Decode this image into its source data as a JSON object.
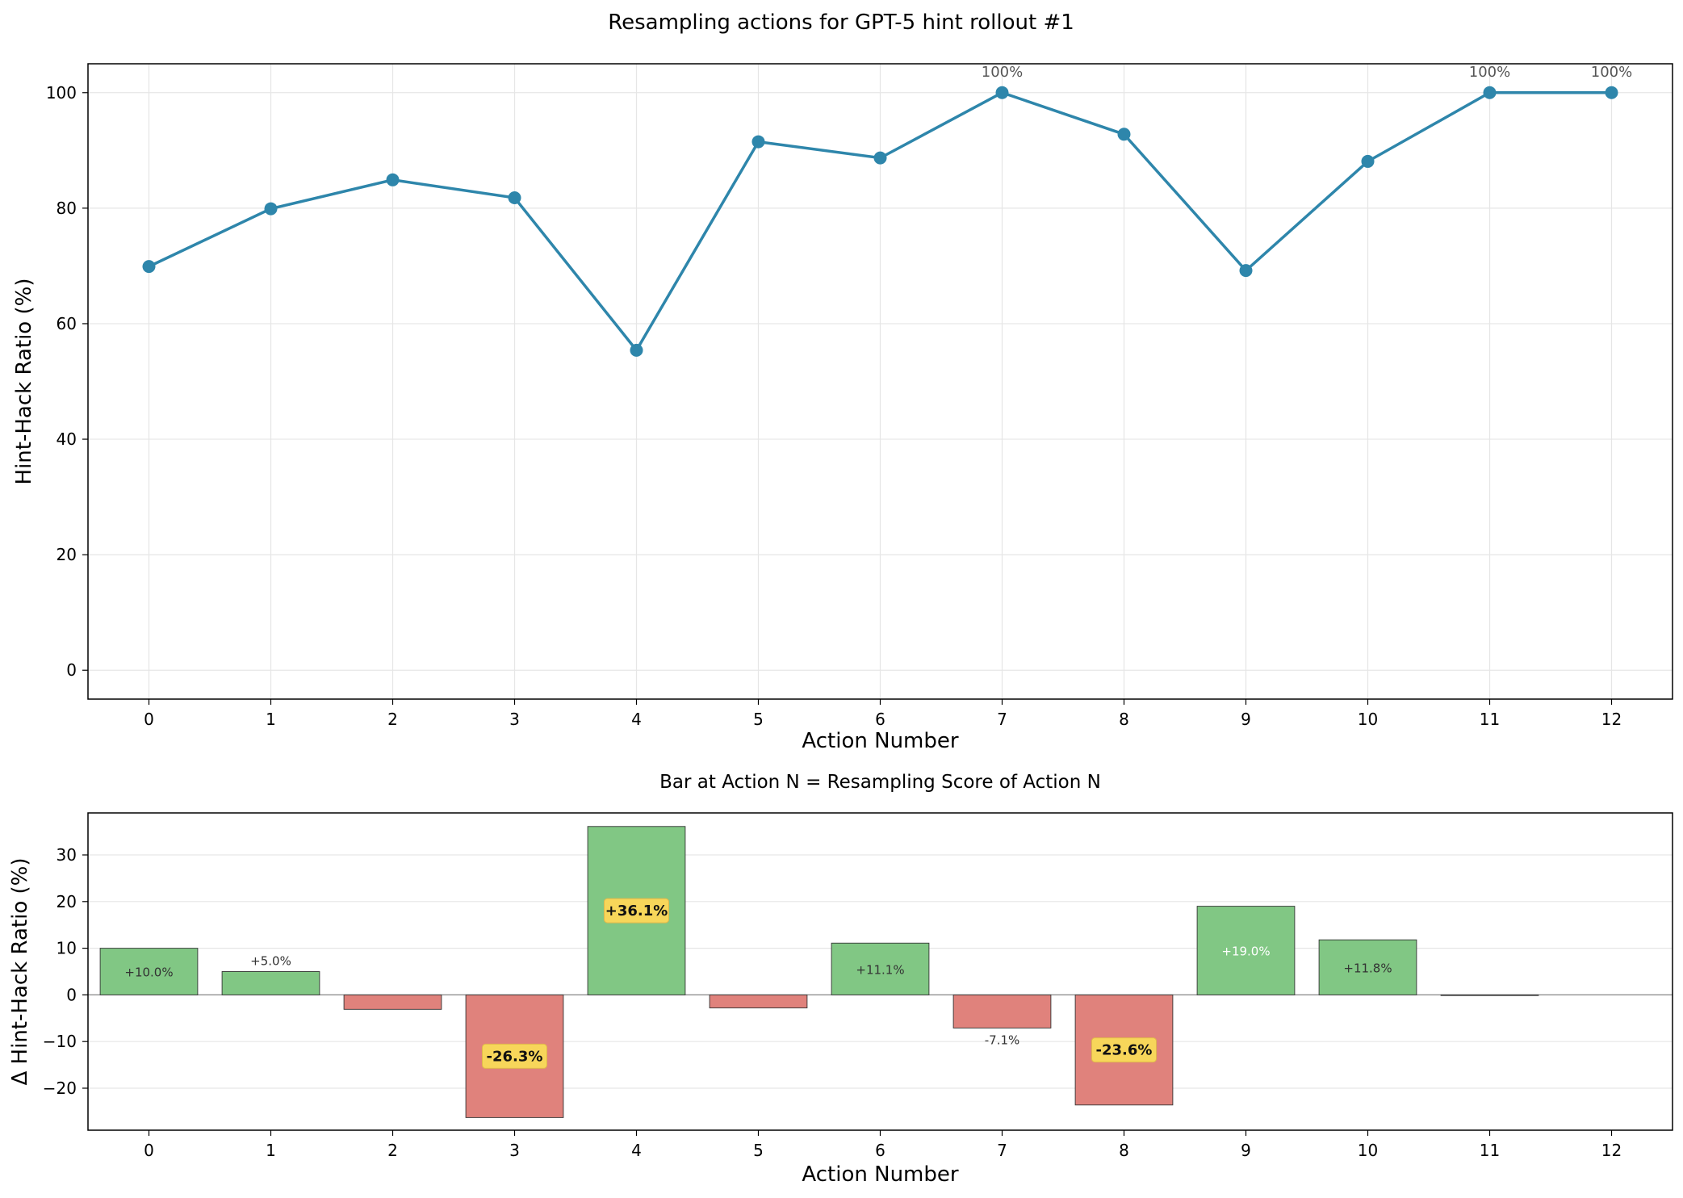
{
  "figure_title": "Resampling actions for GPT-5 hint rollout #1",
  "chart_data": [
    {
      "type": "line",
      "title": "",
      "xlabel": "Action Number",
      "ylabel": "Hint-Hack Ratio (%)",
      "x": [
        0,
        1,
        2,
        3,
        4,
        5,
        6,
        7,
        8,
        9,
        10,
        11,
        12
      ],
      "values": [
        69.9,
        79.9,
        84.9,
        81.8,
        55.4,
        91.5,
        88.7,
        100,
        92.8,
        69.2,
        88.1,
        100,
        100
      ],
      "xlim": [
        -0.5,
        12.5
      ],
      "ylim": [
        -5,
        105
      ],
      "yticks": [
        0,
        20,
        40,
        60,
        80,
        100
      ],
      "xticks": [
        0,
        1,
        2,
        3,
        4,
        5,
        6,
        7,
        8,
        9,
        10,
        11,
        12
      ],
      "grid": true,
      "color": "#2e86ab",
      "annotations": [
        {
          "x": 7,
          "label": "100%"
        },
        {
          "x": 11,
          "label": "100%"
        },
        {
          "x": 12,
          "label": "100%"
        }
      ]
    },
    {
      "type": "bar",
      "title": "Bar at Action N = Resampling Score of Action N",
      "xlabel": "Action Number",
      "ylabel": "Δ Hint-Hack Ratio (%)",
      "categories": [
        0,
        1,
        2,
        3,
        4,
        5,
        6,
        7,
        8,
        9,
        10,
        11,
        12
      ],
      "values": [
        10.0,
        5.0,
        -3.1,
        -26.3,
        36.1,
        -2.8,
        11.1,
        -7.1,
        -23.6,
        19.0,
        11.8,
        0,
        null
      ],
      "labels": [
        "+10.0%",
        "+5.0%",
        "",
        "-26.3%",
        "+36.1%",
        "",
        "+11.1%",
        "-7.1%",
        "-23.6%",
        "+19.0%",
        "+11.8%",
        "",
        ""
      ],
      "label_style": [
        "in",
        "above",
        "none",
        "highlight",
        "highlight",
        "none",
        "in",
        "below",
        "highlight",
        "in-light",
        "in",
        "none",
        "none"
      ],
      "xlim": [
        -0.5,
        12.5
      ],
      "ylim": [
        -29,
        39
      ],
      "yticks": [
        -20,
        -10,
        0,
        10,
        20,
        30
      ],
      "grid": true,
      "positive_color": "#81c784",
      "negative_color": "#e0827c",
      "highlight_color": "#f7d65a"
    }
  ]
}
